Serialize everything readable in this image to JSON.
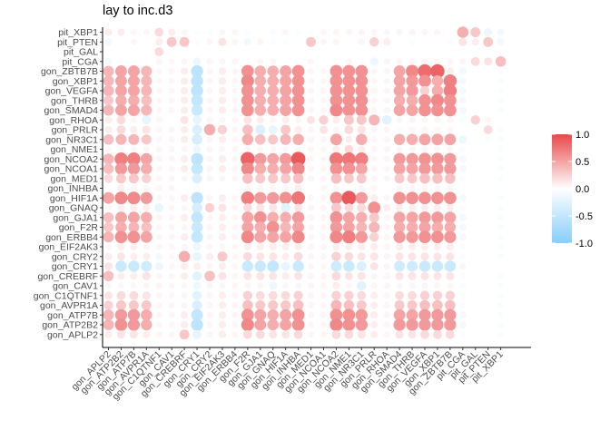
{
  "chart_data": {
    "type": "heatmap",
    "mark": "circle",
    "title": "lay to inc.d3",
    "xlabel": "",
    "ylabel": "",
    "x_labels": [
      "gon_APLP2",
      "gon_ATP2B2",
      "gon_ATP7B",
      "gon_AVPR1A",
      "gon_C1QTNF1",
      "gon_CAV1",
      "gon_CREBRF",
      "gon_CRY1",
      "gon_CRY2",
      "gon_EIF2AK3",
      "gon_ERBB4",
      "gon_F2R",
      "gon_GJA1",
      "gon_GNAQ",
      "gon_HIF1A",
      "gon_INHBA",
      "gon_MED1",
      "gon_NCOA1",
      "gon_NCOA2",
      "gon_NME1",
      "gon_NR3C1",
      "gon_PRLR",
      "gon_RHOA",
      "gon_SMAD4",
      "gon_THRB",
      "gon_VEGFA",
      "gon_XBP1",
      "gon_ZBTB7B",
      "pit_CGA",
      "pit_GAL",
      "pit_PTEN",
      "pit_XBP1"
    ],
    "y_labels": [
      "pit_XBP1",
      "pit_PTEN",
      "pit_GAL",
      "pit_CGA",
      "gon_ZBTB7B",
      "gon_XBP1",
      "gon_VEGFA",
      "gon_THRB",
      "gon_SMAD4",
      "gon_RHOA",
      "gon_PRLR",
      "gon_NR3C1",
      "gon_NME1",
      "gon_NCOA2",
      "gon_NCOA1",
      "gon_MED1",
      "gon_INHBA",
      "gon_HIF1A",
      "gon_GNAQ",
      "gon_GJA1",
      "gon_F2R",
      "gon_ERBB4",
      "gon_EIF2AK3",
      "gon_CRY2",
      "gon_CRY1",
      "gon_CREBRF",
      "gon_CAV1",
      "gon_C1QTNF1",
      "gon_AVPR1A",
      "gon_ATP7B",
      "gon_ATP2B2",
      "gon_APLP2"
    ],
    "rows": [
      [
        0.1,
        0.1,
        0.05,
        0.05,
        0.2,
        0.1,
        0.05,
        -0.05,
        -0.05,
        0.05,
        0.05,
        -0.05,
        0,
        -0.05,
        0.05,
        -0.05,
        -0.05,
        0.05,
        0.05,
        0.05,
        0.05,
        0.05,
        0.05,
        0.05,
        0.05,
        0.05,
        0.05,
        0,
        0.45,
        0.3,
        -0.15,
        -0.1
      ],
      [
        -0.1,
        0,
        0.05,
        0,
        0.1,
        0.3,
        0.3,
        -0.05,
        0.05,
        0.15,
        0.05,
        -0.1,
        0.05,
        -0.05,
        -0.05,
        0,
        0.3,
        0.05,
        0.05,
        0,
        0.05,
        0.25,
        0.1,
        0,
        -0.05,
        0,
        0,
        -0.05,
        0.15,
        0.1,
        0.3,
        -0.1
      ],
      [
        0,
        0,
        0,
        0,
        0.2,
        0,
        0,
        0,
        0,
        0,
        0,
        0,
        0,
        0,
        0,
        0,
        0,
        0,
        0,
        0,
        0,
        0,
        0,
        0,
        0,
        0,
        0,
        0,
        0,
        0,
        0,
        0
      ],
      [
        -0.1,
        -0.05,
        0,
        0,
        0.05,
        0.05,
        0.05,
        -0.15,
        0.05,
        0.05,
        0.05,
        0,
        0.05,
        0.05,
        0,
        0,
        0.05,
        0,
        0,
        0.05,
        0,
        -0.15,
        0.05,
        0.05,
        0.05,
        0.05,
        0.05,
        0.05,
        0.05,
        0.2,
        0.15,
        0.35
      ],
      [
        0.4,
        0.5,
        0.5,
        0.4,
        0.05,
        0.05,
        0.1,
        -0.55,
        0.05,
        0.1,
        0.05,
        0.6,
        0.45,
        0.45,
        0.5,
        0.6,
        0.05,
        0.05,
        0.6,
        0.6,
        0.6,
        0.05,
        0.05,
        0.5,
        0.65,
        0.8,
        0.85,
        0.1,
        -0.1,
        0,
        0,
        -0.05
      ],
      [
        0.4,
        0.5,
        0.5,
        0.4,
        0.05,
        0.05,
        0.1,
        -0.55,
        0.05,
        0.1,
        0.05,
        0.65,
        0.45,
        0.45,
        0.5,
        0.6,
        0.05,
        0.05,
        0.6,
        0.6,
        0.6,
        0.05,
        0.05,
        0.5,
        0.55,
        0.6,
        0.45,
        0.7,
        -0.1,
        0,
        0,
        -0.05
      ],
      [
        0.4,
        0.5,
        0.5,
        0.4,
        0.05,
        0.05,
        0.1,
        -0.55,
        0.05,
        0.1,
        0.05,
        0.6,
        0.45,
        0.45,
        0.5,
        0.6,
        0.05,
        0.05,
        0.6,
        0.6,
        0.6,
        0.05,
        0.05,
        0.5,
        0.55,
        0.25,
        0.45,
        0.7,
        -0.1,
        0,
        0,
        -0.05
      ],
      [
        0.3,
        0.45,
        0.45,
        0.35,
        0.05,
        0.05,
        0.1,
        -0.5,
        0.05,
        0.1,
        0.05,
        0.6,
        0.45,
        0.45,
        0.5,
        0.6,
        0.05,
        0.05,
        0.6,
        0.6,
        0.6,
        0.05,
        0.05,
        0.45,
        0.45,
        0.6,
        0.65,
        0.6,
        -0.1,
        0,
        0,
        -0.05
      ],
      [
        0.4,
        0.5,
        0.5,
        0.4,
        0.05,
        0.05,
        0.1,
        -0.45,
        0.05,
        0.1,
        0.05,
        0.6,
        0.45,
        0.45,
        0.5,
        0.6,
        0.05,
        0.05,
        0.65,
        0.6,
        0.6,
        0.05,
        0.05,
        0.5,
        0.5,
        0.6,
        0.6,
        0.6,
        -0.1,
        0,
        0,
        -0.05
      ],
      [
        0.1,
        0.2,
        0.05,
        -0.2,
        0.05,
        0,
        0.15,
        -0.2,
        0.05,
        0.05,
        0.05,
        0.15,
        0.1,
        0.05,
        0.1,
        0.05,
        0.15,
        0.25,
        0.1,
        0.3,
        0.3,
        0.4,
        -0.25,
        0.05,
        0.05,
        0.05,
        0.05,
        0.05,
        -0.05,
        0.25,
        0.05,
        0
      ],
      [
        0.1,
        0.2,
        0.1,
        0.15,
        0.05,
        0.05,
        0.1,
        -0.3,
        0.45,
        0.25,
        0.05,
        0.35,
        -0.3,
        -0.2,
        0.3,
        0.1,
        0.05,
        0.15,
        0.05,
        0.2,
        0.15,
        0.05,
        0.05,
        -0.05,
        0.05,
        0.05,
        0.05,
        0.05,
        0,
        0,
        0.2,
        -0.05
      ],
      [
        0.35,
        0.4,
        0.4,
        0.3,
        0.05,
        0.05,
        0.1,
        -0.35,
        0.05,
        0.1,
        0.05,
        0.45,
        0.35,
        0.3,
        0.4,
        0.45,
        0.05,
        0.05,
        0.5,
        0.1,
        0.45,
        0.05,
        0.05,
        0.45,
        0.45,
        0.5,
        0.5,
        0.5,
        -0.15,
        0,
        -0.05,
        -0.05
      ],
      [
        0.05,
        0.05,
        0.05,
        0.05,
        0.05,
        0.05,
        0.05,
        -0.15,
        0.05,
        0.05,
        0.05,
        0.05,
        0.05,
        0.05,
        0.05,
        0.05,
        0.05,
        0.05,
        0.1,
        0.2,
        0.1,
        0.05,
        0.05,
        0.05,
        0.05,
        0.05,
        0.05,
        0.05,
        -0.05,
        0,
        0,
        -0.05
      ],
      [
        0.4,
        0.7,
        0.7,
        0.5,
        0.05,
        0.05,
        0.1,
        -0.55,
        0.05,
        0.1,
        0.05,
        0.85,
        0.55,
        0.5,
        0.55,
        0.9,
        0.05,
        0.05,
        0.75,
        0.75,
        0.7,
        0.05,
        0.05,
        0.55,
        0.55,
        0.6,
        0.6,
        0.55,
        -0.1,
        0,
        0,
        -0.05
      ],
      [
        0.35,
        0.55,
        0.55,
        0.45,
        0.05,
        0.05,
        0.1,
        -0.5,
        0.05,
        0.1,
        0.05,
        0.65,
        0.45,
        0.45,
        0.5,
        0.65,
        0.05,
        0.05,
        0.6,
        0.6,
        0.5,
        0.05,
        0.05,
        0.5,
        0.5,
        0.55,
        0.55,
        0.55,
        -0.1,
        0,
        0,
        -0.05
      ],
      [
        0.2,
        0.3,
        0.3,
        0.25,
        0.05,
        0.05,
        0.05,
        -0.3,
        0.05,
        0.05,
        0.05,
        0.35,
        0.3,
        0.3,
        0.3,
        0.35,
        0.05,
        0.05,
        0.35,
        0.3,
        0.3,
        0.05,
        0.05,
        0.3,
        0.3,
        0.35,
        0.35,
        0.35,
        -0.05,
        0,
        0,
        -0.05
      ],
      [
        0,
        0.1,
        0.05,
        0.05,
        0.05,
        0.05,
        0,
        -0.05,
        0,
        0,
        0,
        0.05,
        0.05,
        0.05,
        0.05,
        0.1,
        0,
        0.05,
        0.05,
        0,
        0.05,
        0.05,
        0,
        0.05,
        0.05,
        0.05,
        0.05,
        0.05,
        0,
        0,
        0,
        0
      ],
      [
        0.5,
        0.65,
        0.65,
        0.55,
        0.05,
        0.05,
        0.1,
        -0.55,
        0.05,
        0.1,
        0.05,
        0.7,
        0.55,
        0.55,
        0.6,
        0.75,
        0.05,
        0.05,
        0.6,
        0.9,
        0.55,
        0.1,
        0.05,
        0.6,
        0.6,
        0.6,
        0.6,
        0.6,
        -0.1,
        0,
        0,
        -0.05
      ],
      [
        0.05,
        0.1,
        0.1,
        0.1,
        -0.2,
        0.05,
        0.05,
        -0.35,
        0.25,
        0.15,
        0.05,
        0.2,
        0.15,
        0.15,
        -0.25,
        0.15,
        0.05,
        0.05,
        0.3,
        0.2,
        0.2,
        0.6,
        0.1,
        0.1,
        0.1,
        0.1,
        0.1,
        0.1,
        -0.05,
        0,
        0,
        -0.05
      ],
      [
        0.35,
        0.5,
        0.5,
        0.45,
        0.05,
        0.05,
        0.1,
        -0.5,
        0.05,
        0.1,
        0.05,
        0.5,
        0.6,
        0.45,
        0.45,
        0.55,
        0.05,
        0.05,
        0.6,
        0.5,
        0.45,
        0.3,
        0.05,
        0.5,
        0.5,
        0.55,
        0.55,
        0.5,
        -0.1,
        0,
        0,
        -0.05
      ],
      [
        0.3,
        0.45,
        0.4,
        0.35,
        0.05,
        0.05,
        0.05,
        -0.45,
        0.05,
        0.1,
        0.05,
        0.5,
        0.45,
        0.6,
        0.4,
        0.5,
        0.05,
        0.05,
        0.55,
        0.5,
        0.4,
        0.4,
        0.05,
        0.45,
        0.45,
        0.5,
        0.45,
        0.45,
        -0.1,
        0,
        0,
        -0.05
      ],
      [
        0.4,
        0.6,
        0.6,
        0.5,
        0.05,
        0.05,
        0.1,
        -0.5,
        0.05,
        0.1,
        0.05,
        0.65,
        0.5,
        0.5,
        0.5,
        0.65,
        0.05,
        0.05,
        0.65,
        0.7,
        0.55,
        0.25,
        0.05,
        0.55,
        0.55,
        0.6,
        0.6,
        0.55,
        -0.1,
        0,
        0,
        -0.05
      ],
      [
        0.05,
        0.1,
        0.1,
        0.05,
        0.05,
        0.05,
        0.05,
        -0.15,
        0.05,
        0.05,
        0.05,
        0.1,
        0.1,
        0.1,
        0.1,
        0.1,
        0.05,
        0.05,
        0.1,
        0.1,
        0.1,
        0.1,
        0.05,
        0.1,
        0.1,
        0.1,
        0.1,
        0.1,
        -0.05,
        0,
        0,
        -0.05
      ],
      [
        0.1,
        0.15,
        0.1,
        0.1,
        -0.1,
        0.05,
        0.45,
        -0.2,
        0.1,
        0.3,
        0.05,
        0.2,
        0.15,
        0.15,
        0.1,
        0.2,
        0.05,
        0.05,
        0.25,
        0.2,
        0.15,
        0.15,
        0.05,
        0.15,
        0.15,
        0.15,
        0.15,
        0.15,
        -0.05,
        0,
        0,
        -0.05
      ],
      [
        0.15,
        -0.45,
        -0.45,
        -0.4,
        -0.15,
        0.05,
        0.1,
        0.1,
        0.05,
        0.1,
        0.05,
        -0.45,
        -0.45,
        -0.5,
        -0.2,
        -0.45,
        0.05,
        0.05,
        -0.4,
        -0.45,
        -0.3,
        0.15,
        0.05,
        -0.4,
        -0.4,
        -0.45,
        -0.45,
        -0.45,
        0.05,
        0,
        0,
        0
      ],
      [
        0.35,
        0.1,
        0.1,
        0.15,
        0.05,
        0.05,
        0.1,
        -0.25,
        0.35,
        0.15,
        0.05,
        0.15,
        0.15,
        0.15,
        0.1,
        0.15,
        0.05,
        0.05,
        0.2,
        0.15,
        0.15,
        0.05,
        0.05,
        0.15,
        0.15,
        0.15,
        0.15,
        0.15,
        -0.05,
        0,
        0,
        -0.05
      ],
      [
        0.05,
        0.05,
        0.05,
        0.05,
        0.05,
        0.05,
        0.05,
        -0.15,
        0.05,
        0.05,
        0.05,
        0.05,
        0.05,
        -0.15,
        0.05,
        0.05,
        0.05,
        0.05,
        0.1,
        0.05,
        -0.25,
        0.05,
        0.05,
        0.05,
        0.05,
        0.05,
        0.05,
        0.05,
        -0.05,
        0,
        0,
        -0.05
      ],
      [
        0.15,
        0.2,
        0.2,
        0.15,
        0.05,
        0.05,
        0.05,
        -0.25,
        0.05,
        0.1,
        0.05,
        0.25,
        0.2,
        0.2,
        0.2,
        0.25,
        0.05,
        0.05,
        0.25,
        0.25,
        0.2,
        0.1,
        0.05,
        0.2,
        0.2,
        0.25,
        0.25,
        0.25,
        -0.05,
        0,
        0,
        -0.05
      ],
      [
        0.25,
        0.3,
        0.3,
        0.3,
        0.05,
        0.05,
        0.05,
        -0.3,
        0.05,
        0.1,
        0.05,
        0.35,
        0.3,
        0.3,
        0.3,
        0.35,
        0.05,
        0.05,
        0.4,
        0.35,
        0.3,
        0.1,
        0.05,
        0.3,
        0.3,
        0.35,
        0.35,
        0.35,
        -0.05,
        0,
        0,
        -0.05
      ],
      [
        0.4,
        0.55,
        0.55,
        0.45,
        0.05,
        0.05,
        0.1,
        -0.5,
        0.05,
        0.1,
        0.05,
        0.6,
        0.5,
        0.45,
        0.5,
        0.6,
        0.05,
        0.05,
        0.6,
        0.6,
        0.55,
        0.1,
        0.05,
        0.5,
        0.5,
        0.55,
        0.55,
        0.55,
        -0.1,
        0,
        0,
        -0.05
      ],
      [
        0.4,
        0.6,
        0.55,
        0.45,
        0.05,
        0.05,
        0.1,
        -0.55,
        0.05,
        0.1,
        0.05,
        0.65,
        0.5,
        0.45,
        0.5,
        0.6,
        0.05,
        0.05,
        0.65,
        0.6,
        0.55,
        0.1,
        0.05,
        0.55,
        0.55,
        0.55,
        0.55,
        0.55,
        -0.1,
        0,
        0,
        -0.05
      ],
      [
        0.1,
        0.15,
        0.15,
        0.1,
        0.05,
        0.05,
        0.3,
        -0.2,
        0.05,
        0.1,
        0.05,
        0.2,
        0.2,
        0.15,
        0.15,
        0.2,
        0.05,
        0.05,
        0.2,
        0.2,
        0.15,
        0.1,
        0.05,
        0.15,
        0.15,
        0.2,
        0.2,
        0.2,
        -0.05,
        0,
        0,
        -0.05
      ]
    ],
    "colorbar": {
      "min": -1.0,
      "max": 1.0,
      "ticks": [
        "1.0",
        "0.5",
        "0.0",
        "-0.5",
        "-1.0"
      ],
      "tick_values": [
        1.0,
        0.5,
        0.0,
        -0.5,
        -1.0
      ]
    },
    "colors": {
      "positive": "#E8484A",
      "negative": "#87CEFA",
      "neutral": "#FFFFFF"
    },
    "legend_position": "right",
    "grid": false
  }
}
